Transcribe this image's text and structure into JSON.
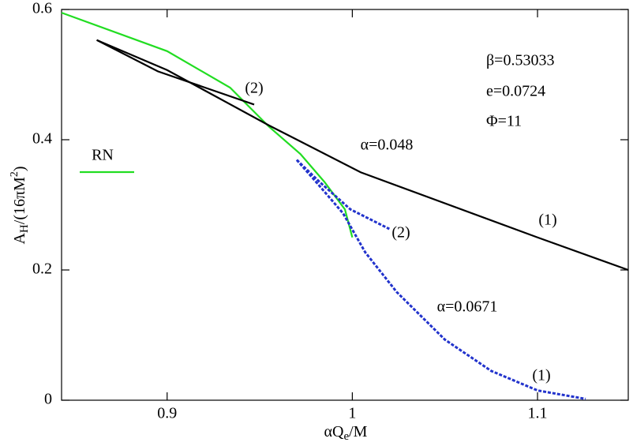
{
  "chart_data": {
    "type": "line",
    "xlabel": {
      "main": "αQ",
      "sub": "e",
      "rest": "/M"
    },
    "ylabel": {
      "main": "A",
      "sub": "H",
      "mid": "/(16πM",
      "sup": "2",
      "end": ")"
    },
    "xlim": [
      0.843,
      1.149
    ],
    "ylim": [
      0,
      0.6
    ],
    "xticks": [
      0.9,
      1,
      1.1
    ],
    "yticks": [
      0,
      0.2,
      0.4,
      0.6
    ],
    "series": [
      {
        "name": "RN",
        "color": "#22dd22",
        "x": [
          0.843,
          0.9,
          0.934,
          0.955,
          0.972,
          0.985,
          0.996,
          1.0
        ],
        "values": [
          0.595,
          0.536,
          0.48,
          0.42,
          0.378,
          0.335,
          0.293,
          0.25
        ]
      },
      {
        "color": "#000000",
        "x": [
          0.862,
          0.9,
          0.955,
          1.0045,
          1.1,
          1.149
        ],
        "values": [
          0.553,
          0.507,
          0.422,
          0.35,
          0.25,
          0.2
        ]
      },
      {
        "color": "#000000",
        "x": [
          0.862,
          0.895,
          0.947
        ],
        "values": [
          0.553,
          0.505,
          0.454
        ]
      },
      {
        "color": "#2233cc",
        "dashed": true,
        "x": [
          0.97,
          0.982,
          0.995,
          1.007,
          1.024,
          1.05,
          1.075,
          1.1,
          1.126
        ],
        "values": [
          0.369,
          0.33,
          0.287,
          0.227,
          0.166,
          0.093,
          0.045,
          0.015,
          0.002
        ]
      },
      {
        "color": "#2233cc",
        "dashed": true,
        "x": [
          0.97,
          0.982,
          0.999,
          1.02
        ],
        "values": [
          0.369,
          0.336,
          0.293,
          0.263
        ]
      }
    ],
    "annotations": [
      "β=0.53033",
      "e=0.0724",
      "Φ=11",
      "α=0.048",
      "(1)",
      "(2)",
      "α=0.0671",
      "(1)",
      "(2)"
    ]
  }
}
